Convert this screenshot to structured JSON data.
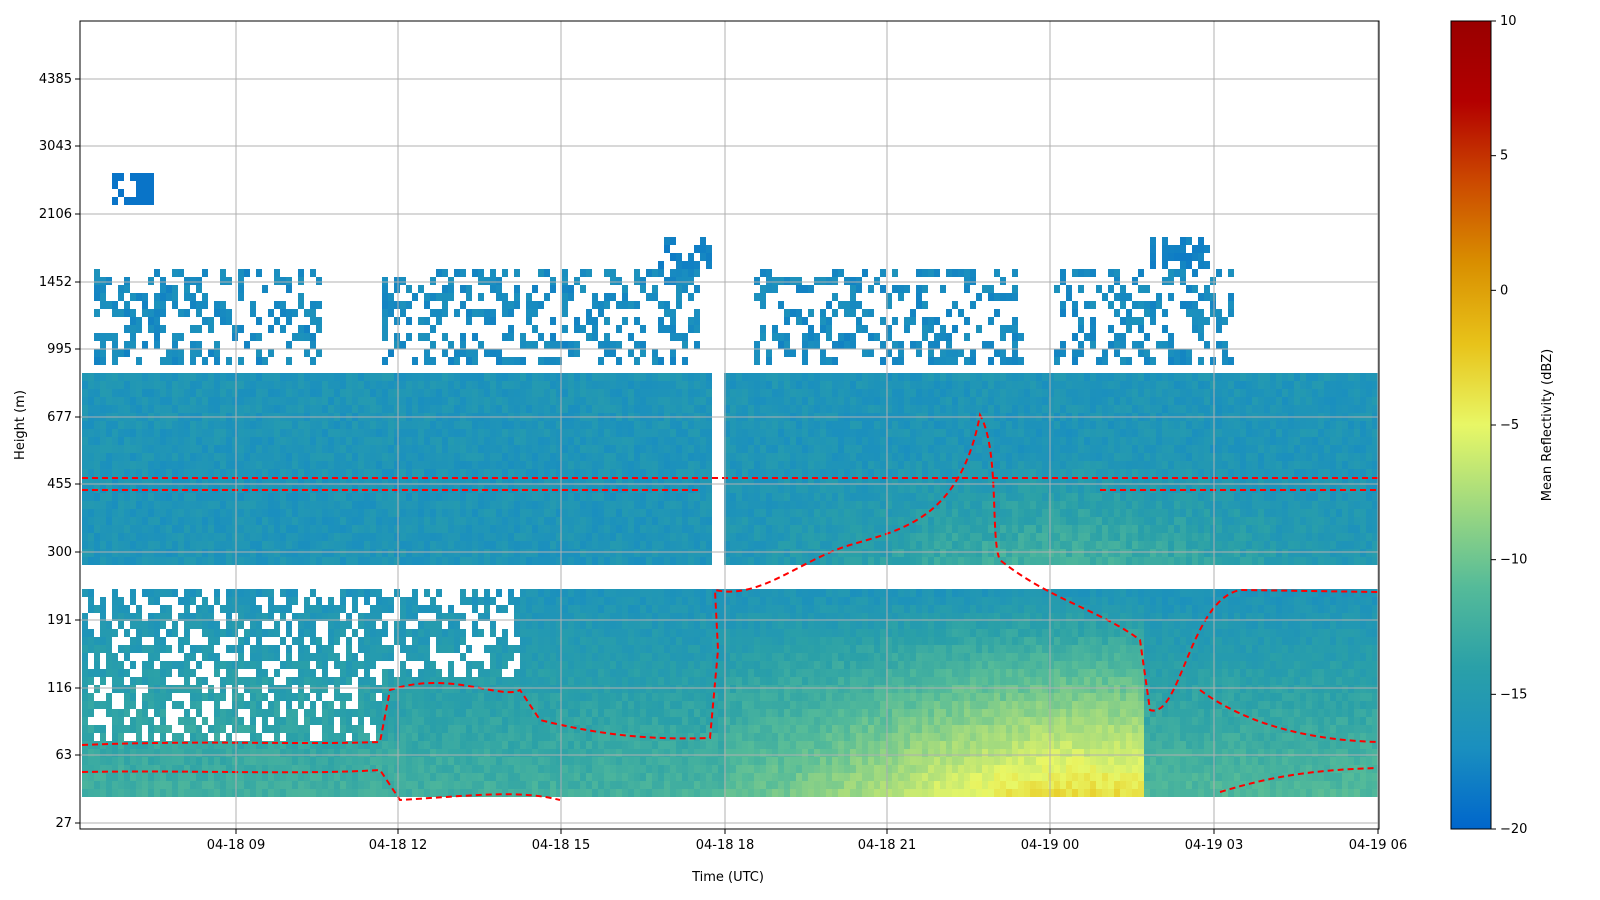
{
  "chart_data": {
    "type": "heatmap",
    "xlabel": "Time (UTC)",
    "ylabel": "Height (m)",
    "x_ticks": [
      "04-18 09",
      "04-18 12",
      "04-18 15",
      "04-18 18",
      "04-18 21",
      "04-19 00",
      "04-19 03",
      "04-19 06"
    ],
    "y_ticks": [
      "27",
      "63",
      "116",
      "191",
      "300",
      "455",
      "677",
      "995",
      "1452",
      "2106",
      "3043",
      "4385"
    ],
    "colorbar": {
      "label": "Mean Reflectivity (dBZ)",
      "ticks": [
        "10",
        "5",
        "0",
        "−5",
        "−10",
        "−15",
        "−20"
      ],
      "range": [
        -20,
        10
      ],
      "colors": [
        "#0066cc",
        "#1a8fbf",
        "#2aa0a8",
        "#55bb99",
        "#9fd97f",
        "#e8f766",
        "#e8c31a",
        "#d98f00",
        "#cc4a00",
        "#b30000",
        "#990000"
      ]
    },
    "x_range_hours": [
      4.0,
      28.0
    ],
    "y_range_m": [
      27,
      6000
    ],
    "grid": true,
    "contour_color": "#ff0000",
    "contour_style": "dashed"
  }
}
